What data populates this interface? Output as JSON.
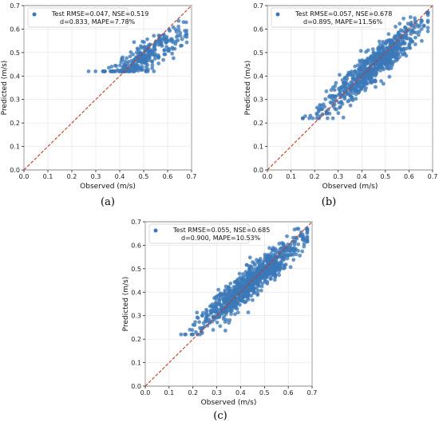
{
  "chart_data": [
    {
      "type": "scatter",
      "panel": "(a)",
      "xlabel": "Observed (m/s)",
      "ylabel": "Predicted (m/s)",
      "xlim": [
        0,
        0.7
      ],
      "ylim": [
        0,
        0.7
      ],
      "ticks": [
        "0.0",
        "0.1",
        "0.2",
        "0.3",
        "0.4",
        "0.5",
        "0.6",
        "0.7"
      ],
      "grid": true,
      "legend_position": "top-left",
      "series": [
        {
          "name": "Test RMSE=0.047, NSE=0.519",
          "name_line2": "d=0.833, MAPE=7.78%",
          "color": "#3b78b8",
          "obs_range": [
            0.27,
            0.68
          ],
          "pred_range": [
            0.42,
            0.67
          ],
          "slope": 0.62,
          "intercept": 0.17,
          "noise": 0.03,
          "n_points": 300
        }
      ],
      "identity_line": {
        "color": "#c0392b",
        "style": "dashed"
      }
    },
    {
      "type": "scatter",
      "panel": "(b)",
      "xlabel": "Observed (m/s)",
      "ylabel": "Predicted (m/s)",
      "xlim": [
        0,
        0.7
      ],
      "ylim": [
        0,
        0.7
      ],
      "ticks": [
        "0.0",
        "0.1",
        "0.2",
        "0.3",
        "0.4",
        "0.5",
        "0.6",
        "0.7"
      ],
      "grid": true,
      "legend_position": "top-left",
      "series": [
        {
          "name": "Test RMSE=0.057, NSE=0.678",
          "name_line2": "d=0.895, MAPE=11.56%",
          "color": "#3b78b8",
          "obs_range": [
            0.15,
            0.68
          ],
          "pred_range": [
            0.22,
            0.67
          ],
          "slope": 0.85,
          "intercept": 0.06,
          "noise": 0.035,
          "n_points": 700
        }
      ],
      "identity_line": {
        "color": "#c0392b",
        "style": "dashed"
      }
    },
    {
      "type": "scatter",
      "panel": "(c)",
      "xlabel": "Observed (m/s)",
      "ylabel": "Predicted (m/s)",
      "xlim": [
        0,
        0.7
      ],
      "ylim": [
        0,
        0.7
      ],
      "ticks": [
        "0.0",
        "0.1",
        "0.2",
        "0.3",
        "0.4",
        "0.5",
        "0.6",
        "0.7"
      ],
      "grid": true,
      "legend_position": "top-left",
      "series": [
        {
          "name": "Test RMSE=0.055, NSE=0.685",
          "name_line2": "d=0.900, MAPE=10.53%",
          "color": "#3b78b8",
          "obs_range": [
            0.15,
            0.68
          ],
          "pred_range": [
            0.22,
            0.67
          ],
          "slope": 0.86,
          "intercept": 0.06,
          "noise": 0.034,
          "n_points": 900
        }
      ],
      "identity_line": {
        "color": "#c0392b",
        "style": "dashed"
      }
    }
  ]
}
